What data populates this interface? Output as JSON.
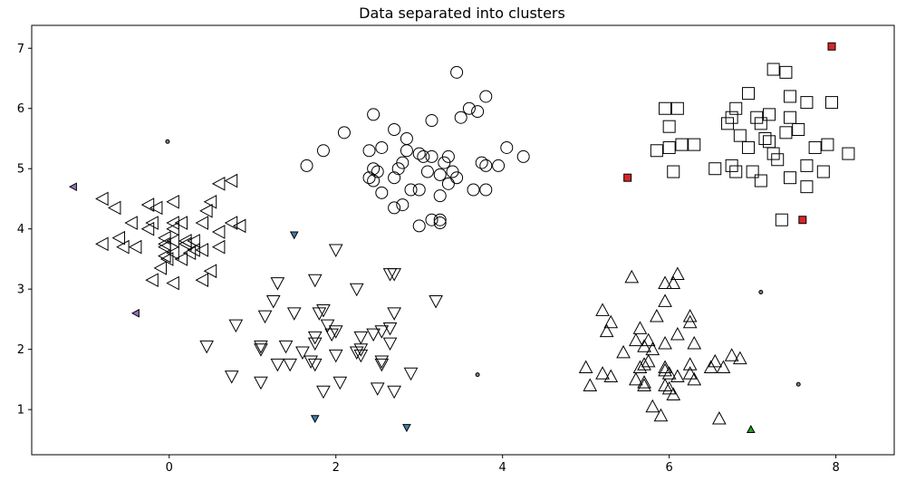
{
  "chart_data": {
    "type": "scatter",
    "title": "Data separated into clusters",
    "xlabel": "",
    "ylabel": "",
    "xlim": [
      -1.65,
      8.7
    ],
    "ylim": [
      0.25,
      7.38
    ],
    "xticks": [
      0,
      2,
      4,
      6,
      8
    ],
    "yticks": [
      1,
      2,
      3,
      4,
      5,
      6,
      7
    ],
    "grid": false,
    "series": [
      {
        "marker": "triangle-left",
        "points": [
          [
            -0.8,
            4.5
          ],
          [
            -0.25,
            4.4
          ],
          [
            -0.15,
            4.35
          ],
          [
            0.05,
            4.45
          ],
          [
            0.15,
            4.1
          ],
          [
            0.5,
            4.45
          ],
          [
            0.6,
            4.75
          ],
          [
            0.75,
            4.8
          ],
          [
            -0.65,
            4.35
          ],
          [
            -0.25,
            4.0
          ],
          [
            -0.2,
            4.1
          ],
          [
            -0.45,
            4.1
          ],
          [
            0.05,
            4.0
          ],
          [
            0.05,
            4.1
          ],
          [
            -0.05,
            3.85
          ],
          [
            0.05,
            3.8
          ],
          [
            0.2,
            3.75
          ],
          [
            0.3,
            3.8
          ],
          [
            0.4,
            4.1
          ],
          [
            0.45,
            4.3
          ],
          [
            0.75,
            4.1
          ],
          [
            0.85,
            4.05
          ],
          [
            0.6,
            3.95
          ],
          [
            -0.8,
            3.75
          ],
          [
            -0.6,
            3.85
          ],
          [
            -0.55,
            3.7
          ],
          [
            -0.4,
            3.7
          ],
          [
            -0.05,
            3.7
          ],
          [
            -0.05,
            3.55
          ],
          [
            0.05,
            3.6
          ],
          [
            0.15,
            3.5
          ],
          [
            0.25,
            3.6
          ],
          [
            0.3,
            3.65
          ],
          [
            0.4,
            3.65
          ],
          [
            0.6,
            3.7
          ],
          [
            -0.2,
            3.15
          ],
          [
            -0.1,
            3.35
          ],
          [
            -0.02,
            3.5
          ],
          [
            0.05,
            3.1
          ],
          [
            0.4,
            3.15
          ],
          [
            0.5,
            3.3
          ],
          [
            0.2,
            3.8
          ],
          [
            -0.05,
            3.75
          ]
        ]
      },
      {
        "marker": "triangle-down",
        "points": [
          [
            2.0,
            3.65
          ],
          [
            1.3,
            3.1
          ],
          [
            1.75,
            3.15
          ],
          [
            2.65,
            3.25
          ],
          [
            2.7,
            3.25
          ],
          [
            1.25,
            2.8
          ],
          [
            1.5,
            2.6
          ],
          [
            1.8,
            2.6
          ],
          [
            1.85,
            2.65
          ],
          [
            2.25,
            3.0
          ],
          [
            3.2,
            2.8
          ],
          [
            0.8,
            2.4
          ],
          [
            1.15,
            2.55
          ],
          [
            1.9,
            2.4
          ],
          [
            2.0,
            2.3
          ],
          [
            1.95,
            2.25
          ],
          [
            2.3,
            2.2
          ],
          [
            2.55,
            2.3
          ],
          [
            2.65,
            2.35
          ],
          [
            2.7,
            2.6
          ],
          [
            0.45,
            2.05
          ],
          [
            1.1,
            2.05
          ],
          [
            1.1,
            2.0
          ],
          [
            1.4,
            2.05
          ],
          [
            1.6,
            1.95
          ],
          [
            1.75,
            2.1
          ],
          [
            1.75,
            2.2
          ],
          [
            2.0,
            1.9
          ],
          [
            2.3,
            2.0
          ],
          [
            2.45,
            2.25
          ],
          [
            2.65,
            2.1
          ],
          [
            0.75,
            1.55
          ],
          [
            1.1,
            1.45
          ],
          [
            1.3,
            1.75
          ],
          [
            1.45,
            1.75
          ],
          [
            1.7,
            1.8
          ],
          [
            1.75,
            1.75
          ],
          [
            1.85,
            1.3
          ],
          [
            2.05,
            1.45
          ],
          [
            2.25,
            1.95
          ],
          [
            2.3,
            1.9
          ],
          [
            2.55,
            1.8
          ],
          [
            2.55,
            1.75
          ],
          [
            2.5,
            1.35
          ],
          [
            2.7,
            1.3
          ],
          [
            2.9,
            1.6
          ]
        ]
      },
      {
        "marker": "circle",
        "points": [
          [
            3.45,
            6.6
          ],
          [
            3.8,
            6.2
          ],
          [
            2.45,
            5.9
          ],
          [
            3.6,
            6.0
          ],
          [
            3.7,
            5.95
          ],
          [
            3.5,
            5.85
          ],
          [
            3.15,
            5.8
          ],
          [
            2.1,
            5.6
          ],
          [
            2.7,
            5.65
          ],
          [
            2.85,
            5.5
          ],
          [
            2.85,
            5.3
          ],
          [
            2.55,
            5.35
          ],
          [
            1.85,
            5.3
          ],
          [
            2.4,
            5.3
          ],
          [
            3.0,
            5.25
          ],
          [
            3.15,
            5.2
          ],
          [
            3.35,
            5.2
          ],
          [
            3.3,
            5.1
          ],
          [
            3.05,
            5.2
          ],
          [
            4.05,
            5.35
          ],
          [
            4.25,
            5.2
          ],
          [
            1.65,
            5.05
          ],
          [
            2.45,
            5.0
          ],
          [
            2.5,
            4.95
          ],
          [
            2.8,
            5.1
          ],
          [
            2.75,
            5.0
          ],
          [
            3.1,
            4.95
          ],
          [
            3.4,
            4.95
          ],
          [
            3.45,
            4.85
          ],
          [
            3.75,
            5.1
          ],
          [
            3.8,
            5.05
          ],
          [
            3.95,
            5.05
          ],
          [
            2.4,
            4.85
          ],
          [
            2.45,
            4.8
          ],
          [
            2.7,
            4.85
          ],
          [
            2.9,
            4.65
          ],
          [
            3.0,
            4.65
          ],
          [
            3.25,
            4.9
          ],
          [
            3.35,
            4.75
          ],
          [
            3.25,
            4.55
          ],
          [
            3.65,
            4.65
          ],
          [
            3.8,
            4.65
          ],
          [
            2.55,
            4.6
          ],
          [
            2.7,
            4.35
          ],
          [
            2.8,
            4.4
          ],
          [
            3.0,
            4.05
          ],
          [
            3.15,
            4.15
          ],
          [
            3.25,
            4.1
          ],
          [
            3.25,
            4.15
          ]
        ]
      },
      {
        "marker": "square",
        "points": [
          [
            7.25,
            6.65
          ],
          [
            7.4,
            6.6
          ],
          [
            6.95,
            6.25
          ],
          [
            7.45,
            6.2
          ],
          [
            7.65,
            6.1
          ],
          [
            7.95,
            6.1
          ],
          [
            5.95,
            6.0
          ],
          [
            6.1,
            6.0
          ],
          [
            6.8,
            6.0
          ],
          [
            6.75,
            5.85
          ],
          [
            7.05,
            5.85
          ],
          [
            7.1,
            5.75
          ],
          [
            7.2,
            5.9
          ],
          [
            7.45,
            5.85
          ],
          [
            6.0,
            5.7
          ],
          [
            6.7,
            5.75
          ],
          [
            6.85,
            5.55
          ],
          [
            7.15,
            5.5
          ],
          [
            7.2,
            5.45
          ],
          [
            7.4,
            5.6
          ],
          [
            7.55,
            5.65
          ],
          [
            5.85,
            5.3
          ],
          [
            6.0,
            5.35
          ],
          [
            6.15,
            5.4
          ],
          [
            6.3,
            5.4
          ],
          [
            6.95,
            5.35
          ],
          [
            7.25,
            5.25
          ],
          [
            7.3,
            5.15
          ],
          [
            7.75,
            5.35
          ],
          [
            7.9,
            5.4
          ],
          [
            8.15,
            5.25
          ],
          [
            6.05,
            4.95
          ],
          [
            6.55,
            5.0
          ],
          [
            6.75,
            5.05
          ],
          [
            6.8,
            4.95
          ],
          [
            7.0,
            4.95
          ],
          [
            7.1,
            4.8
          ],
          [
            7.45,
            4.85
          ],
          [
            7.65,
            4.7
          ],
          [
            7.65,
            5.05
          ],
          [
            7.85,
            4.95
          ],
          [
            7.35,
            4.15
          ]
        ]
      },
      {
        "marker": "triangle-up",
        "points": [
          [
            5.55,
            3.2
          ],
          [
            5.95,
            3.1
          ],
          [
            6.1,
            3.25
          ],
          [
            6.05,
            3.1
          ],
          [
            5.2,
            2.65
          ],
          [
            5.3,
            2.45
          ],
          [
            5.95,
            2.8
          ],
          [
            5.85,
            2.55
          ],
          [
            6.25,
            2.55
          ],
          [
            6.25,
            2.45
          ],
          [
            5.25,
            2.3
          ],
          [
            5.65,
            2.35
          ],
          [
            5.6,
            2.15
          ],
          [
            5.75,
            2.15
          ],
          [
            5.7,
            2.05
          ],
          [
            5.8,
            2.0
          ],
          [
            5.95,
            2.1
          ],
          [
            6.1,
            2.25
          ],
          [
            6.3,
            2.1
          ],
          [
            5.45,
            1.95
          ],
          [
            5.75,
            1.8
          ],
          [
            5.7,
            1.75
          ],
          [
            5.65,
            1.7
          ],
          [
            6.25,
            1.75
          ],
          [
            6.5,
            1.7
          ],
          [
            6.55,
            1.8
          ],
          [
            6.75,
            1.9
          ],
          [
            6.85,
            1.85
          ],
          [
            6.65,
            1.7
          ],
          [
            5.0,
            1.7
          ],
          [
            5.2,
            1.6
          ],
          [
            5.3,
            1.55
          ],
          [
            5.6,
            1.5
          ],
          [
            5.7,
            1.45
          ],
          [
            5.95,
            1.7
          ],
          [
            5.95,
            1.65
          ],
          [
            6.0,
            1.6
          ],
          [
            6.1,
            1.55
          ],
          [
            6.25,
            1.6
          ],
          [
            6.3,
            1.5
          ],
          [
            5.05,
            1.4
          ],
          [
            5.7,
            1.4
          ],
          [
            5.95,
            1.4
          ],
          [
            6.0,
            1.35
          ],
          [
            6.05,
            1.25
          ],
          [
            5.8,
            1.05
          ],
          [
            5.9,
            0.9
          ],
          [
            6.6,
            0.85
          ]
        ]
      },
      {
        "marker": "noise",
        "points": [
          {
            "x": -1.15,
            "y": 4.7,
            "shape": "triangle-left",
            "color": "#9b6fc0"
          },
          {
            "x": -0.4,
            "y": 2.6,
            "shape": "triangle-left",
            "color": "#9b6fc0"
          },
          {
            "x": -0.02,
            "y": 5.45,
            "shape": "dot",
            "color": "#808080"
          },
          {
            "x": 1.5,
            "y": 3.9,
            "shape": "triangle-down",
            "color": "#3e7fb0"
          },
          {
            "x": 1.75,
            "y": 0.85,
            "shape": "triangle-down",
            "color": "#3e7fb0"
          },
          {
            "x": 2.85,
            "y": 0.7,
            "shape": "triangle-down",
            "color": "#3e7fb0"
          },
          {
            "x": 3.7,
            "y": 1.58,
            "shape": "dot",
            "color": "#808080"
          },
          {
            "x": 5.5,
            "y": 4.85,
            "shape": "square",
            "color": "#d62728"
          },
          {
            "x": 7.95,
            "y": 7.03,
            "shape": "square",
            "color": "#d62728"
          },
          {
            "x": 7.6,
            "y": 4.15,
            "shape": "square",
            "color": "#d62728"
          },
          {
            "x": 7.1,
            "y": 2.95,
            "shape": "dot",
            "color": "#808080"
          },
          {
            "x": 7.55,
            "y": 1.42,
            "shape": "dot",
            "color": "#808080"
          },
          {
            "x": 6.98,
            "y": 0.67,
            "shape": "triangle-up",
            "color": "#2ca02c"
          }
        ]
      }
    ]
  }
}
